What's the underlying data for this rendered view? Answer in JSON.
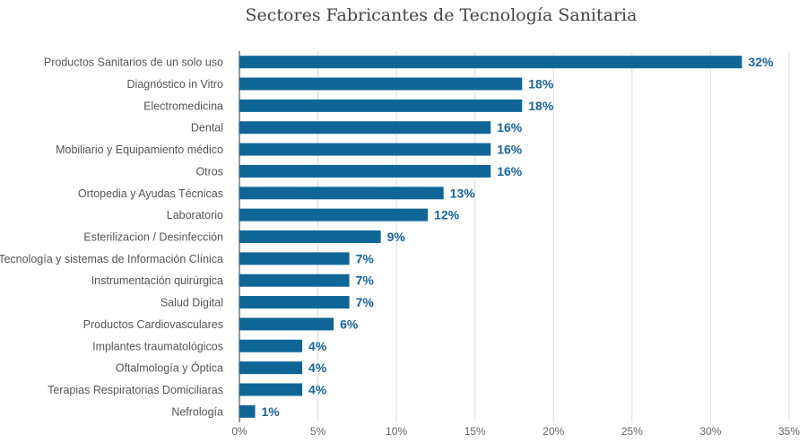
{
  "chart_data": {
    "type": "bar",
    "orientation": "horizontal",
    "title": "Sectores Fabricantes de Tecnología Sanitaria",
    "xlabel": "",
    "ylabel": "",
    "xlim": [
      0,
      35
    ],
    "grid": true,
    "bar_color": "#0f6696",
    "ticks": [
      "0%",
      "5%",
      "10%",
      "15%",
      "20%",
      "25%",
      "30%",
      "35%"
    ],
    "tick_values": [
      0,
      5,
      10,
      15,
      20,
      25,
      30,
      35
    ],
    "categories": [
      "Productos Sanitarios de un solo uso",
      "Diagnóstico in Vitro",
      "Electromedicina",
      "Dental",
      "Mobiliario y Equipamiento médico",
      "Otros",
      "Ortopedia y Ayudas Técnicas",
      "Laboratorio",
      "Esterilizacion / Desinfección",
      "Tecnología y sistemas de Información Clínica",
      "Instrumentación quirúrgica",
      "Salud Digital",
      "Productos Cardiovasculares",
      "Implantes traumatológicos",
      "Oftalmología y Óptica",
      "Terapias Respiratorias Domiciliaras",
      "Nefrología"
    ],
    "values": [
      32,
      18,
      18,
      16,
      16,
      16,
      13,
      12,
      9,
      7,
      7,
      7,
      6,
      4,
      4,
      4,
      1
    ],
    "data_labels": [
      "32%",
      "18%",
      "18%",
      "16%",
      "16%",
      "16%",
      "13%",
      "12%",
      "9%",
      "7%",
      "7%",
      "7%",
      "6%",
      "4%",
      "4%",
      "4%",
      "1%"
    ]
  }
}
